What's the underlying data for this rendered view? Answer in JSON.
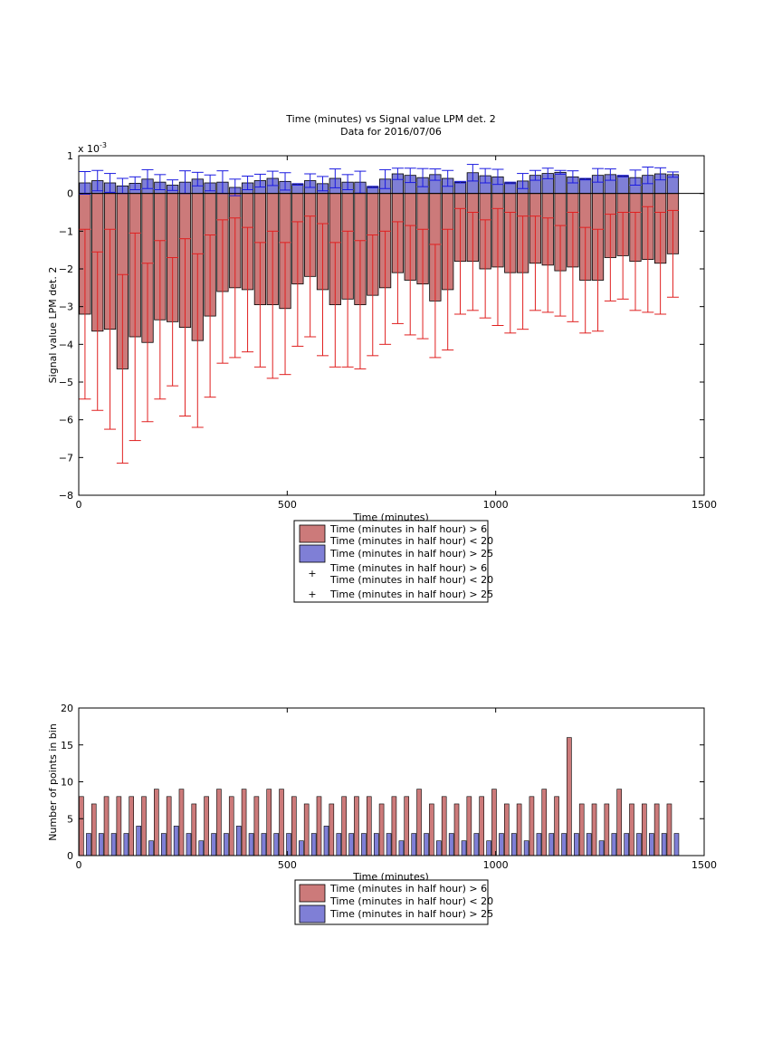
{
  "colors": {
    "red_fill": "#cc7a7a",
    "blue_fill": "#7f7fd6",
    "red_err": "#e02020",
    "blue_err": "#1a1ae0"
  },
  "chart_data": [
    {
      "type": "bar",
      "title": "Time (minutes) vs Signal value LPM det. 2",
      "subtitle": "Data for 2016/07/06",
      "xlabel": "Time (minutes)",
      "ylabel": "Signal value LPM det. 2",
      "exponent_label": "x 10",
      "exponent_value": "-3",
      "xlim": [
        0,
        1500
      ],
      "ylim": [
        -8,
        1
      ],
      "xticks": [
        0,
        500,
        1000,
        1500
      ],
      "yticks": [
        1,
        0,
        -1,
        -2,
        -3,
        -4,
        -5,
        -6,
        -7,
        -8
      ],
      "x": [
        15,
        45,
        75,
        105,
        135,
        165,
        195,
        225,
        255,
        285,
        315,
        345,
        375,
        405,
        435,
        465,
        495,
        525,
        555,
        585,
        615,
        645,
        675,
        705,
        735,
        765,
        795,
        825,
        855,
        885,
        915,
        945,
        975,
        1005,
        1035,
        1065,
        1095,
        1125,
        1155,
        1185,
        1215,
        1245,
        1275,
        1305,
        1335,
        1365,
        1395,
        1425
      ],
      "bar_width": 27,
      "series": [
        {
          "name": "Time (minutes in half hour) > 6 Time (minutes in half hour) < 20",
          "values": [
            -3.2,
            -3.65,
            -3.6,
            -4.65,
            -3.8,
            -3.95,
            -3.35,
            -3.4,
            -3.55,
            -3.9,
            -3.25,
            -2.6,
            -2.5,
            -2.55,
            -2.95,
            -2.95,
            -3.05,
            -2.4,
            -2.2,
            -2.55,
            -2.95,
            -2.8,
            -2.95,
            -2.7,
            -2.5,
            -2.1,
            -2.3,
            -2.4,
            -2.85,
            -2.55,
            -1.8,
            -1.8,
            -2.0,
            -1.95,
            -2.1,
            -2.1,
            -1.85,
            -1.9,
            -2.05,
            -1.95,
            -2.3,
            -2.3,
            -1.7,
            -1.65,
            -1.8,
            -1.75,
            -1.85,
            -1.6
          ],
          "error": [
            2.25,
            2.1,
            2.65,
            2.5,
            2.75,
            2.1,
            2.1,
            1.7,
            2.35,
            2.3,
            2.15,
            1.9,
            1.85,
            1.65,
            1.65,
            1.95,
            1.75,
            1.65,
            1.6,
            1.75,
            1.65,
            1.8,
            1.7,
            1.6,
            1.5,
            1.35,
            1.45,
            1.45,
            1.5,
            1.6,
            1.4,
            1.3,
            1.3,
            1.55,
            1.6,
            1.5,
            1.25,
            1.25,
            1.2,
            1.45,
            1.4,
            1.35,
            1.15,
            1.15,
            1.3,
            1.4,
            1.35,
            1.15
          ]
        },
        {
          "name": "Time (minutes in half hour) > 25",
          "values": [
            0.28,
            0.34,
            0.28,
            0.2,
            0.27,
            0.38,
            0.3,
            0.22,
            0.3,
            0.38,
            0.28,
            0.3,
            0.16,
            0.28,
            0.34,
            0.4,
            0.32,
            0.24,
            0.34,
            0.26,
            0.4,
            0.3,
            0.3,
            0.17,
            0.38,
            0.52,
            0.48,
            0.42,
            0.5,
            0.4,
            0.3,
            0.55,
            0.47,
            0.44,
            0.28,
            0.33,
            0.48,
            0.53,
            0.56,
            0.44,
            0.38,
            0.48,
            0.5,
            0.46,
            0.42,
            0.48,
            0.52,
            0.5
          ],
          "error": [
            0.3,
            0.27,
            0.25,
            0.2,
            0.17,
            0.25,
            0.2,
            0.14,
            0.3,
            0.18,
            0.21,
            0.3,
            0.22,
            0.18,
            0.17,
            0.19,
            0.23,
            0.02,
            0.18,
            0.19,
            0.25,
            0.2,
            0.29,
            0.02,
            0.25,
            0.15,
            0.19,
            0.24,
            0.15,
            0.21,
            0.02,
            0.22,
            0.19,
            0.2,
            0.02,
            0.2,
            0.13,
            0.14,
            0.05,
            0.16,
            0.02,
            0.18,
            0.15,
            0.02,
            0.2,
            0.22,
            0.16,
            0.07
          ]
        }
      ],
      "legend": [
        "Time (minutes in half hour) > 6",
        "Time (minutes in half hour) < 20",
        "Time (minutes in half hour) > 25",
        "Time (minutes in half hour) > 6",
        "Time (minutes in half hour) < 20",
        "Time (minutes in half hour) > 25"
      ],
      "legend_position": "below"
    },
    {
      "type": "bar",
      "xlabel": "Time (minutes)",
      "ylabel": "Number of points in bin",
      "xlim": [
        0,
        1500
      ],
      "ylim": [
        0,
        20
      ],
      "xticks": [
        0,
        500,
        1000,
        1500
      ],
      "yticks": [
        20,
        15,
        10,
        5,
        0
      ],
      "x": [
        15,
        45,
        75,
        105,
        135,
        165,
        195,
        225,
        255,
        285,
        315,
        345,
        375,
        405,
        435,
        465,
        495,
        525,
        555,
        585,
        615,
        645,
        675,
        705,
        735,
        765,
        795,
        825,
        855,
        885,
        915,
        945,
        975,
        1005,
        1035,
        1065,
        1095,
        1125,
        1155,
        1185,
        1215,
        1245,
        1275,
        1305,
        1335,
        1365,
        1395,
        1425
      ],
      "series": [
        {
          "name": "Time (minutes in half hour) > 6 Time (minutes in half hour) < 20",
          "values": [
            8,
            7,
            8,
            8,
            8,
            8,
            9,
            8,
            9,
            7,
            8,
            9,
            8,
            9,
            8,
            9,
            9,
            8,
            7,
            8,
            7,
            8,
            8,
            8,
            7,
            8,
            8,
            9,
            7,
            8,
            7,
            8,
            8,
            9,
            7,
            7,
            8,
            9,
            8,
            16,
            7,
            7,
            7,
            9,
            7,
            7,
            7,
            7
          ],
          "values_override": true
        },
        {
          "name": "Time (minutes in half hour) > 25",
          "values": [
            3,
            3,
            3,
            3,
            4,
            2,
            3,
            4,
            3,
            2,
            3,
            3,
            4,
            3,
            3,
            3,
            3,
            2,
            3,
            4,
            3,
            3,
            3,
            3,
            3,
            2,
            3,
            3,
            2,
            3,
            2,
            3,
            2,
            3,
            3,
            2,
            3,
            3,
            3,
            3,
            3,
            2,
            3,
            3,
            3,
            3,
            3,
            3
          ]
        }
      ],
      "legend": [
        "Time (minutes in half hour) > 6",
        "Time (minutes in half hour) < 20",
        "Time (minutes in half hour) > 25"
      ],
      "legend_position": "below"
    }
  ]
}
